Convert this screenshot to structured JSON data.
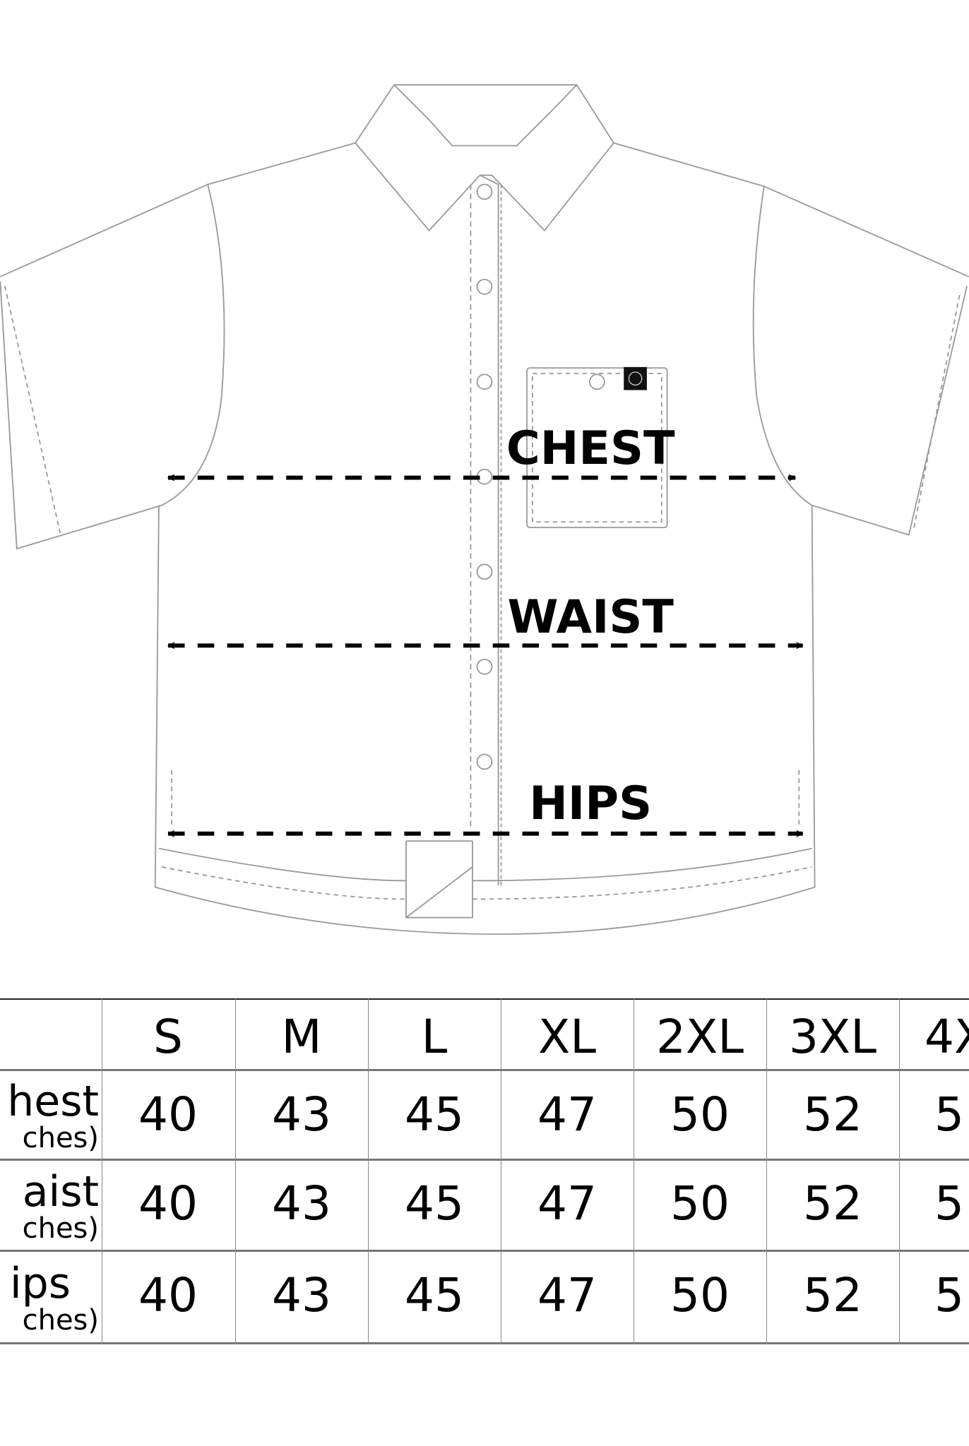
{
  "diagram": {
    "labels": {
      "chest": "CHEST",
      "waist": "WAIST",
      "hips": "HIPS"
    },
    "colors": {
      "outline": "#9a9a9a",
      "arrow": "#000000"
    }
  },
  "size_table": {
    "headers": [
      "S",
      "M",
      "L",
      "XL",
      "2XL",
      "3XL",
      "4X"
    ],
    "rows": [
      {
        "label": "hest",
        "unit": "ches)",
        "values": [
          "40",
          "43",
          "45",
          "47",
          "50",
          "52",
          "5"
        ]
      },
      {
        "label": "aist",
        "unit": "ches)",
        "values": [
          "40",
          "43",
          "45",
          "47",
          "50",
          "52",
          "5"
        ]
      },
      {
        "label": "ips",
        "unit": "ches)",
        "values": [
          "40",
          "43",
          "45",
          "47",
          "50",
          "52",
          "5"
        ]
      }
    ]
  }
}
